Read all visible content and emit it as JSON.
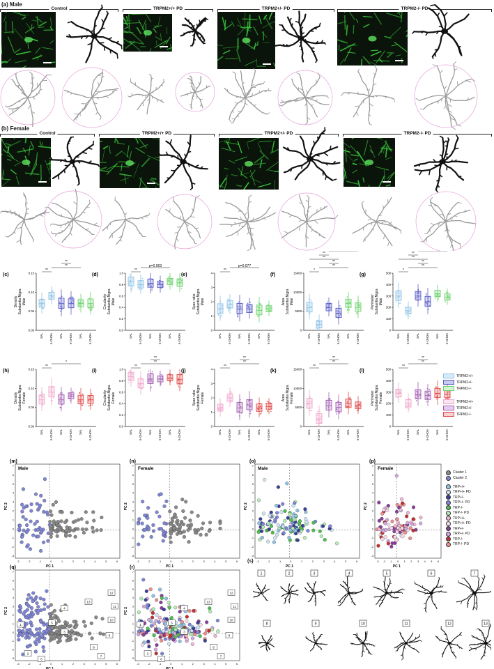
{
  "sections": {
    "a": {
      "letter": "(a)",
      "title": "Male",
      "groups": [
        "Control",
        "TRPM2+/+ PD",
        "TRPM2+/- PD",
        "TRPM2-/- PD"
      ]
    },
    "b": {
      "letter": "(b)",
      "title": "Female",
      "groups": [
        "Control",
        "TRPM2+/+ PD",
        "TRPM2+/- PD",
        "TRPM2-/- PD"
      ]
    }
  },
  "colors": {
    "wt_m": "#8fc3e6",
    "het_m": "#5b5fc7",
    "ko_m": "#6dd36d",
    "wt_f": "#f0a8cc",
    "het_f": "#a25fb3",
    "ko_f": "#e04b4b",
    "cluster1": "#8a8a8a",
    "cluster2": "#7f86d6",
    "micro_green": "#39c43a"
  },
  "box_panels": [
    {
      "letter": "(c)",
      "ylabel": [
        "Density",
        "Substantia Nigra",
        "Male"
      ],
      "yticks": [
        "0.00",
        "0.05",
        "0.10",
        "0.15"
      ],
      "annot": [
        {
          "text": "**"
        },
        {
          "text": "**"
        },
        {
          "text": "**"
        }
      ]
    },
    {
      "letter": "(d)",
      "ylabel": [
        "Circularity",
        "Substantia Nigra",
        "Male"
      ],
      "yticks": [
        "0.0",
        "0.2",
        "0.4",
        "0.6",
        "0.8",
        "1.0"
      ],
      "annot": [
        {
          "text": "**"
        },
        {
          "text": "p=0.063"
        }
      ]
    },
    {
      "letter": "(e)",
      "ylabel": [
        "Span ratio",
        "Substantia Nigra",
        "Male"
      ],
      "yticks": [
        "0",
        "1",
        "2",
        "3",
        "4"
      ],
      "annot": [
        {
          "text": "**"
        },
        {
          "text": "p=0.077"
        }
      ]
    },
    {
      "letter": "(f)",
      "ylabel": [
        "Area",
        "Substantia Nigra",
        "Male"
      ],
      "yticks": [
        "0",
        "5000",
        "10000",
        "15000"
      ],
      "annot": [
        {
          "text": "*"
        },
        {
          "text": "**"
        },
        {
          "text": "**"
        },
        {
          "text": "**"
        },
        {
          "text": "**"
        },
        {
          "text": "**"
        },
        {
          "text": "#"
        }
      ]
    },
    {
      "letter": "(g)",
      "ylabel": [
        "Perimeter",
        "Substantia Nigra",
        "Male"
      ],
      "yticks": [
        "0",
        "100",
        "200",
        "300",
        "400",
        "500"
      ],
      "annot": [
        {
          "text": "*"
        },
        {
          "text": "**"
        },
        {
          "text": "**"
        },
        {
          "text": "**"
        },
        {
          "text": "**"
        },
        {
          "text": "*"
        },
        {
          "text": "#"
        }
      ]
    },
    {
      "letter": "(h)",
      "ylabel": [
        "Density",
        "Substantia Nigra",
        "Female"
      ],
      "yticks": [
        "0.00",
        "0.05",
        "0.10",
        "0.15"
      ],
      "annot": [
        {
          "text": "**"
        },
        {
          "text": "*"
        }
      ]
    },
    {
      "letter": "(i)",
      "ylabel": [
        "Circularity",
        "Substantia Nigra",
        "Female"
      ],
      "yticks": [
        "0.0",
        "0.2",
        "0.4",
        "0.6",
        "0.8",
        "1.0"
      ],
      "annot": [
        {
          "text": "**"
        },
        {
          "text": "**"
        },
        {
          "text": "**"
        }
      ]
    },
    {
      "letter": "(j)",
      "ylabel": [
        "Span ratio",
        "Substantia Nigra",
        "Female"
      ],
      "yticks": [
        "0",
        "1",
        "2",
        "3",
        "4"
      ],
      "annot": [
        {
          "text": "**"
        },
        {
          "text": "**"
        },
        {
          "text": "**"
        }
      ]
    },
    {
      "letter": "(k)",
      "ylabel": [
        "Area",
        "Substantia Nigra",
        "Female"
      ],
      "yticks": [
        "0",
        "5000",
        "10000",
        "15000"
      ],
      "annot": [
        {
          "text": "**"
        },
        {
          "text": "**"
        },
        {
          "text": "**"
        }
      ]
    },
    {
      "letter": "(l)",
      "ylabel": [
        "Perimeter",
        "Substantia Nigra",
        "Female"
      ],
      "yticks": [
        "0",
        "100",
        "200",
        "300",
        "400",
        "500"
      ],
      "annot": [
        {
          "text": "**"
        },
        {
          "text": "**"
        },
        {
          "text": "**"
        }
      ]
    }
  ],
  "box_xlabels": [
    "SAL",
    "6-OHDA",
    "SAL",
    "6-OHDA",
    "SAL",
    "6-OHDA"
  ],
  "legend_male": [
    "TRPM2+/+",
    "TRPM2+/-",
    "TRPM2-/-"
  ],
  "legend_female": [
    "TRPM2+/+",
    "TRPM2+/-",
    "TRPM2-/-"
  ],
  "pca_panels": [
    {
      "letter": "(m)",
      "title": "Male"
    },
    {
      "letter": "(n)",
      "title": "Female"
    },
    {
      "letter": "(o)",
      "title": "Male"
    },
    {
      "letter": "(p)",
      "title": "Female"
    }
  ],
  "pca_axes": {
    "x": "PC 1",
    "y": "PC 2",
    "xticks": [
      "-3",
      "-2",
      "-1",
      "0",
      "1",
      "2",
      "3",
      "4",
      "5",
      "6"
    ],
    "yticks": [
      "-3",
      "-2",
      "-1",
      "0",
      "1",
      "2",
      "3",
      "4",
      "5",
      "6",
      "7"
    ]
  },
  "pca_legend_clusters": [
    "Cluster 1",
    "Cluster 2"
  ],
  "pca_legend_groups": [
    "TRP+/+",
    "TRP+/+ PD",
    "TRP+/-",
    "TRP+/- PD",
    "TRP-/-",
    "TRP-/- PD",
    "TRP+/+",
    "TRP+/+ PD",
    "TRP+/-",
    "TRP+/- PD",
    "TRP-/-",
    "TRP-/- PD"
  ],
  "bottom_letters": [
    "(q)",
    "(r)",
    "(s)"
  ],
  "cluster_ids": [
    "1",
    "2",
    "3",
    "4",
    "5",
    "6",
    "7",
    "8",
    "9",
    "10",
    "11",
    "12",
    "13"
  ],
  "chart_data": [
    {
      "type": "box",
      "panel": "c",
      "categories": [
        "SAL",
        "6-OHDA",
        "SAL",
        "6-OHDA",
        "SAL",
        "6-OHDA"
      ],
      "series": [
        {
          "name": "TRPM2+/+",
          "median": [
            0.07,
            0.09
          ]
        },
        {
          "name": "TRPM2+/-",
          "median": [
            0.07,
            0.07
          ]
        },
        {
          "name": "TRPM2-/-",
          "median": [
            0.07,
            0.07
          ]
        }
      ],
      "ylim": [
        0,
        0.15
      ]
    },
    {
      "type": "box",
      "panel": "d",
      "series": [
        {
          "name": "TRPM2+/+",
          "median": [
            0.85,
            0.8
          ]
        },
        {
          "name": "TRPM2+/-",
          "median": [
            0.82,
            0.8
          ]
        },
        {
          "name": "TRPM2-/-",
          "median": [
            0.85,
            0.83
          ]
        }
      ],
      "ylim": [
        0,
        1.0
      ]
    },
    {
      "type": "box",
      "panel": "e",
      "series": [
        {
          "name": "TRPM2+/+",
          "median": [
            1.5,
            1.8
          ]
        },
        {
          "name": "TRPM2+/-",
          "median": [
            1.5,
            1.5
          ]
        },
        {
          "name": "TRPM2-/-",
          "median": [
            1.4,
            1.5
          ]
        }
      ],
      "ylim": [
        0,
        4
      ]
    },
    {
      "type": "box",
      "panel": "f",
      "series": [
        {
          "name": "TRPM2+/+",
          "median": [
            6000,
            1500
          ]
        },
        {
          "name": "TRPM2+/-",
          "median": [
            6000,
            4500
          ]
        },
        {
          "name": "TRPM2-/-",
          "median": [
            7000,
            6000
          ]
        }
      ],
      "ylim": [
        0,
        15000
      ]
    },
    {
      "type": "box",
      "panel": "g",
      "series": [
        {
          "name": "TRPM2+/+",
          "median": [
            300,
            170
          ]
        },
        {
          "name": "TRPM2+/-",
          "median": [
            300,
            250
          ]
        },
        {
          "name": "TRPM2-/-",
          "median": [
            320,
            290
          ]
        }
      ],
      "ylim": [
        0,
        500
      ]
    },
    {
      "type": "box",
      "panel": "h",
      "series": [
        {
          "name": "TRPM2+/+",
          "median": [
            0.07,
            0.09
          ]
        },
        {
          "name": "TRPM2+/-",
          "median": [
            0.07,
            0.08
          ]
        },
        {
          "name": "TRPM2-/-",
          "median": [
            0.07,
            0.07
          ]
        }
      ],
      "ylim": [
        0,
        0.15
      ]
    },
    {
      "type": "box",
      "panel": "i",
      "series": [
        {
          "name": "TRPM2+/+",
          "median": [
            0.87,
            0.75
          ]
        },
        {
          "name": "TRPM2+/-",
          "median": [
            0.83,
            0.83
          ]
        },
        {
          "name": "TRPM2-/-",
          "median": [
            0.85,
            0.82
          ]
        }
      ],
      "ylim": [
        0,
        1.0
      ]
    },
    {
      "type": "box",
      "panel": "j",
      "series": [
        {
          "name": "TRPM2+/+",
          "median": [
            1.3,
            2.0
          ]
        },
        {
          "name": "TRPM2+/-",
          "median": [
            1.3,
            1.5
          ]
        },
        {
          "name": "TRPM2-/-",
          "median": [
            1.3,
            1.4
          ]
        }
      ],
      "ylim": [
        0,
        4
      ]
    },
    {
      "type": "box",
      "panel": "k",
      "series": [
        {
          "name": "TRPM2+/+",
          "median": [
            6000,
            2000
          ]
        },
        {
          "name": "TRPM2+/-",
          "median": [
            5500,
            5000
          ]
        },
        {
          "name": "TRPM2-/-",
          "median": [
            6000,
            5500
          ]
        }
      ],
      "ylim": [
        0,
        15000
      ]
    },
    {
      "type": "box",
      "panel": "l",
      "series": [
        {
          "name": "TRPM2+/+",
          "median": [
            290,
            200
          ]
        },
        {
          "name": "TRPM2+/-",
          "median": [
            280,
            270
          ]
        },
        {
          "name": "TRPM2-/-",
          "median": [
            290,
            280
          ]
        }
      ],
      "ylim": [
        0,
        500
      ]
    },
    {
      "type": "scatter",
      "panel": "m",
      "xlim": [
        -3,
        6
      ],
      "ylim": [
        -3,
        7
      ],
      "series": [
        {
          "name": "Cluster 1"
        },
        {
          "name": "Cluster 2"
        }
      ]
    },
    {
      "type": "scatter",
      "panel": "n",
      "xlim": [
        -3,
        6
      ],
      "ylim": [
        -3,
        7
      ],
      "series": [
        {
          "name": "Cluster 1"
        },
        {
          "name": "Cluster 2"
        }
      ]
    },
    {
      "type": "scatter",
      "panel": "o",
      "xlim": [
        -3,
        6
      ],
      "ylim": [
        -3,
        7
      ]
    },
    {
      "type": "scatter",
      "panel": "p",
      "xlim": [
        -3,
        6
      ],
      "ylim": [
        -3,
        7
      ]
    }
  ]
}
